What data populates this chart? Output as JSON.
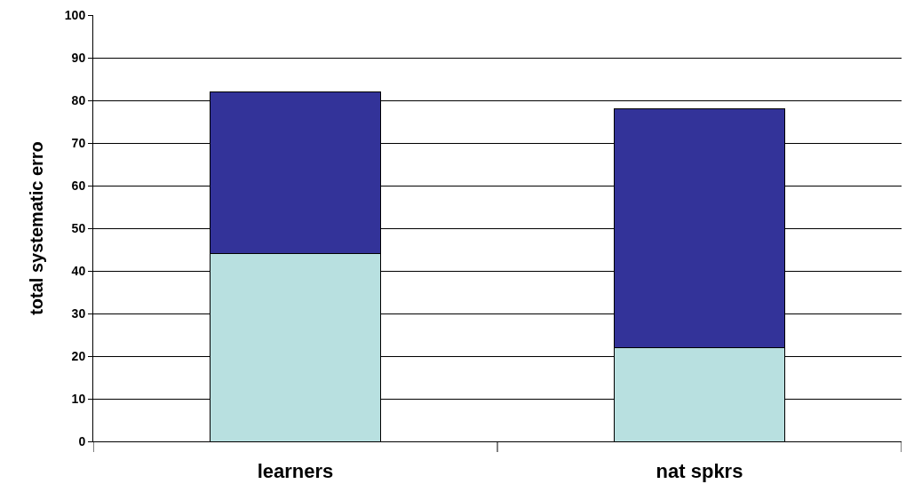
{
  "chart_data": {
    "type": "bar",
    "ylabel": "total systematic erro",
    "categories": [
      "learners",
      "nat spkrs"
    ],
    "stacked": true,
    "series": [
      {
        "color": "#b8e0e0",
        "values": [
          44,
          22
        ]
      },
      {
        "color": "#333399",
        "values": [
          38,
          56
        ]
      }
    ],
    "ylim": [
      0,
      100
    ],
    "yticks": [
      0,
      10,
      20,
      30,
      40,
      50,
      60,
      70,
      80,
      90,
      100
    ],
    "grid": "y"
  }
}
